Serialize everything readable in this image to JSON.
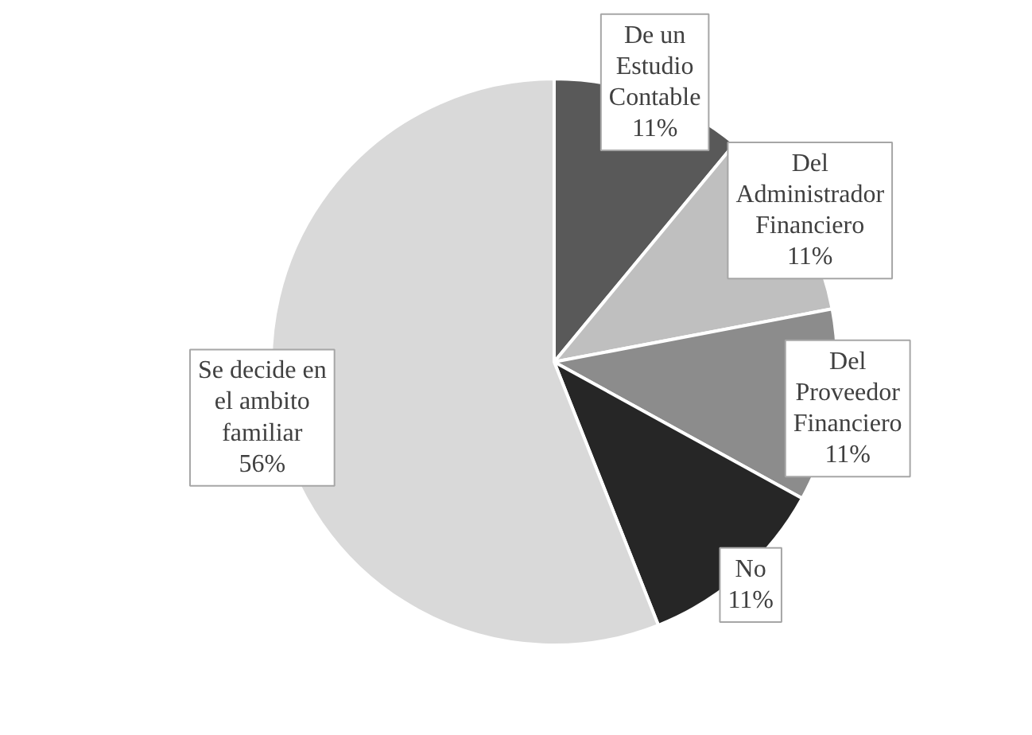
{
  "chart_data": {
    "type": "pie",
    "categories": [
      "De un Estudio Contable",
      "Del Administrador Financiero",
      "Del Proveedor Financiero",
      "No",
      "Se decide en el ambito familiar"
    ],
    "values": [
      11,
      11,
      11,
      11,
      56
    ],
    "colors": [
      "#595959",
      "#bfbfbf",
      "#8c8c8c",
      "#262626",
      "#d9d9d9"
    ],
    "value_labels": [
      "11%",
      "11%",
      "11%",
      "11%",
      "56%"
    ]
  }
}
